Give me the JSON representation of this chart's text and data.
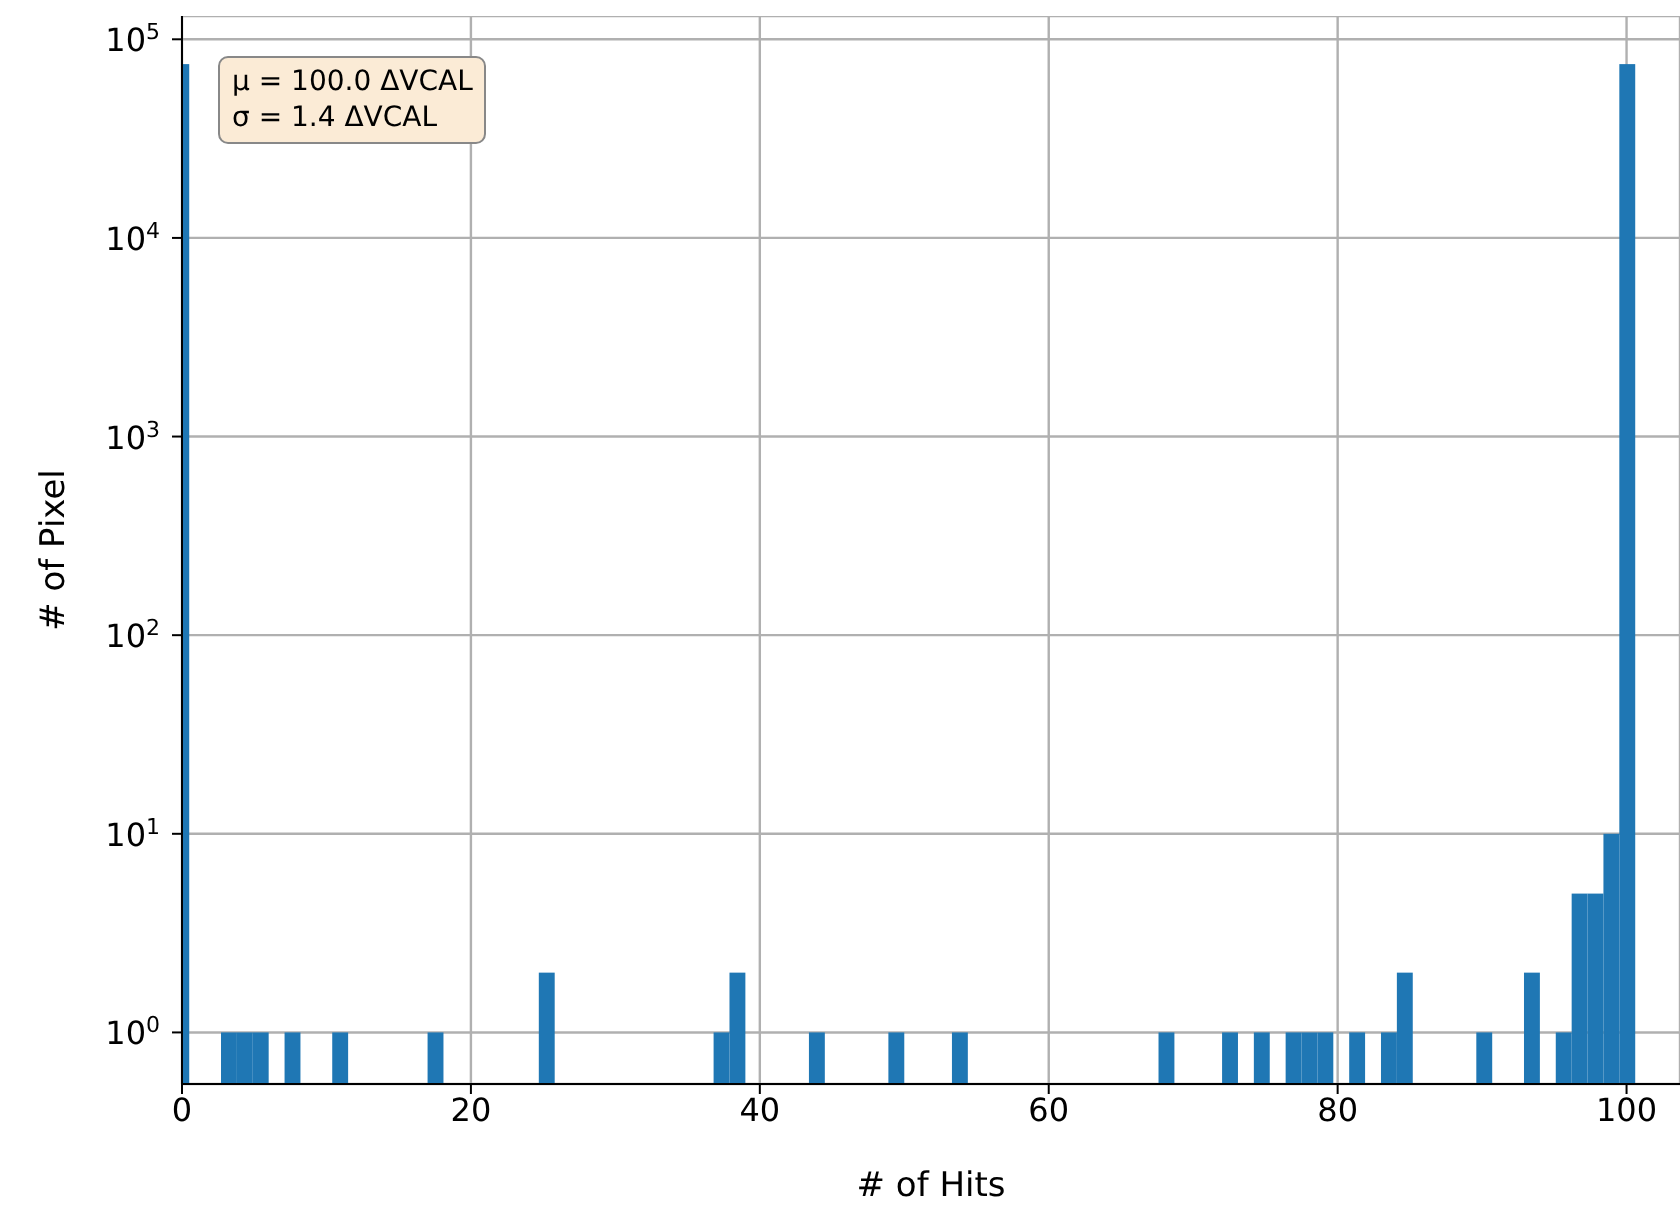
{
  "chart_data": {
    "type": "histogram",
    "xlabel": "# of Hits",
    "ylabel": "# of Pixel",
    "annotations": [
      "μ = 100.0 ΔVCAL",
      "σ = 1.4 ΔVCAL"
    ],
    "bins": [
      0,
      0.5,
      2.7,
      3.8,
      4.9,
      6.0,
      7.1,
      8.2,
      10.4,
      11.5,
      17.0,
      18.1,
      24.7,
      25.8,
      36.8,
      37.9,
      39.0,
      43.4,
      44.5,
      48.9,
      50.0,
      53.3,
      54.4,
      67.6,
      68.7,
      72.0,
      73.1,
      74.2,
      75.3,
      76.4,
      77.5,
      78.6,
      79.7,
      80.8,
      81.9,
      83.0,
      84.1,
      85.2,
      89.6,
      90.7,
      92.9,
      94.0,
      95.1,
      96.2,
      97.3,
      98.4,
      99.5,
      100.6
    ],
    "values": [
      75000,
      null,
      1,
      1,
      1,
      null,
      1,
      null,
      1,
      null,
      1,
      null,
      2,
      null,
      1,
      2,
      null,
      1,
      null,
      1,
      null,
      1,
      null,
      1,
      null,
      1,
      null,
      1,
      null,
      1,
      1,
      1,
      null,
      1,
      null,
      1,
      2,
      null,
      1,
      null,
      2,
      null,
      1,
      5,
      5,
      10,
      75000
    ],
    "color": "#1f77b4",
    "xlim": [
      0,
      103.7
    ],
    "xticks": [
      0,
      20,
      40,
      60,
      80,
      100
    ],
    "ylim": [
      0.55,
      131000
    ],
    "log": "y",
    "yticks": [
      {
        "value": 1,
        "label": "10$^{0}$"
      },
      {
        "value": 10,
        "label": "10$^{1}$"
      },
      {
        "value": 100,
        "label": "10$^{2}$"
      },
      {
        "value": 1000,
        "label": "10$^{3}$"
      },
      {
        "value": 10000,
        "label": "10$^{4}$"
      },
      {
        "value": 100000,
        "label": "10$^{5}$"
      }
    ],
    "grid": true
  }
}
